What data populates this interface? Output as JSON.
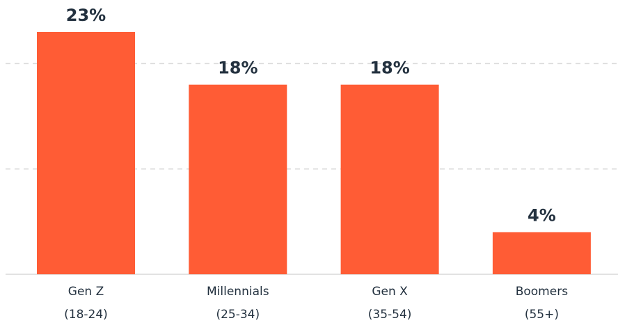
{
  "chart_data": {
    "type": "bar",
    "categories": [
      {
        "name": "Gen Z",
        "range": "(18-24)"
      },
      {
        "name": "Millennials",
        "range": "(25-34)"
      },
      {
        "name": "Gen X",
        "range": "(35-54)"
      },
      {
        "name": "Boomers",
        "range": "(55+)"
      }
    ],
    "values": [
      23,
      18,
      18,
      4
    ],
    "value_labels": [
      "23%",
      "18%",
      "18%",
      "4%"
    ],
    "ylim": [
      0,
      30
    ],
    "gridlines": [
      10,
      20
    ],
    "grid": true,
    "bar_color": "#ff5c35",
    "text_color": "#23313f",
    "grid_color": "#d9d9d9"
  }
}
